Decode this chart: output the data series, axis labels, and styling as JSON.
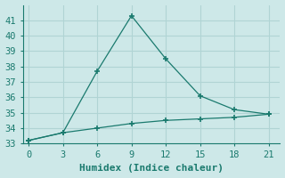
{
  "line1_x": [
    0,
    3,
    6,
    9,
    12,
    15,
    18,
    21
  ],
  "line1_y": [
    33.2,
    33.7,
    37.7,
    41.3,
    38.5,
    36.1,
    35.2,
    34.9
  ],
  "line2_x": [
    0,
    3,
    6,
    9,
    12,
    15,
    18,
    21
  ],
  "line2_y": [
    33.2,
    33.7,
    34.0,
    34.3,
    34.5,
    34.6,
    34.7,
    34.9
  ],
  "line_color": "#1a7a6e",
  "bg_color": "#cde8e8",
  "grid_color": "#b0d4d4",
  "xlabel": "Humidex (Indice chaleur)",
  "xlim": [
    -0.5,
    22
  ],
  "ylim": [
    33,
    42
  ],
  "xticks": [
    0,
    3,
    6,
    9,
    12,
    15,
    18,
    21
  ],
  "yticks": [
    33,
    34,
    35,
    36,
    37,
    38,
    39,
    40,
    41
  ],
  "xlabel_fontsize": 8,
  "tick_fontsize": 7.5
}
